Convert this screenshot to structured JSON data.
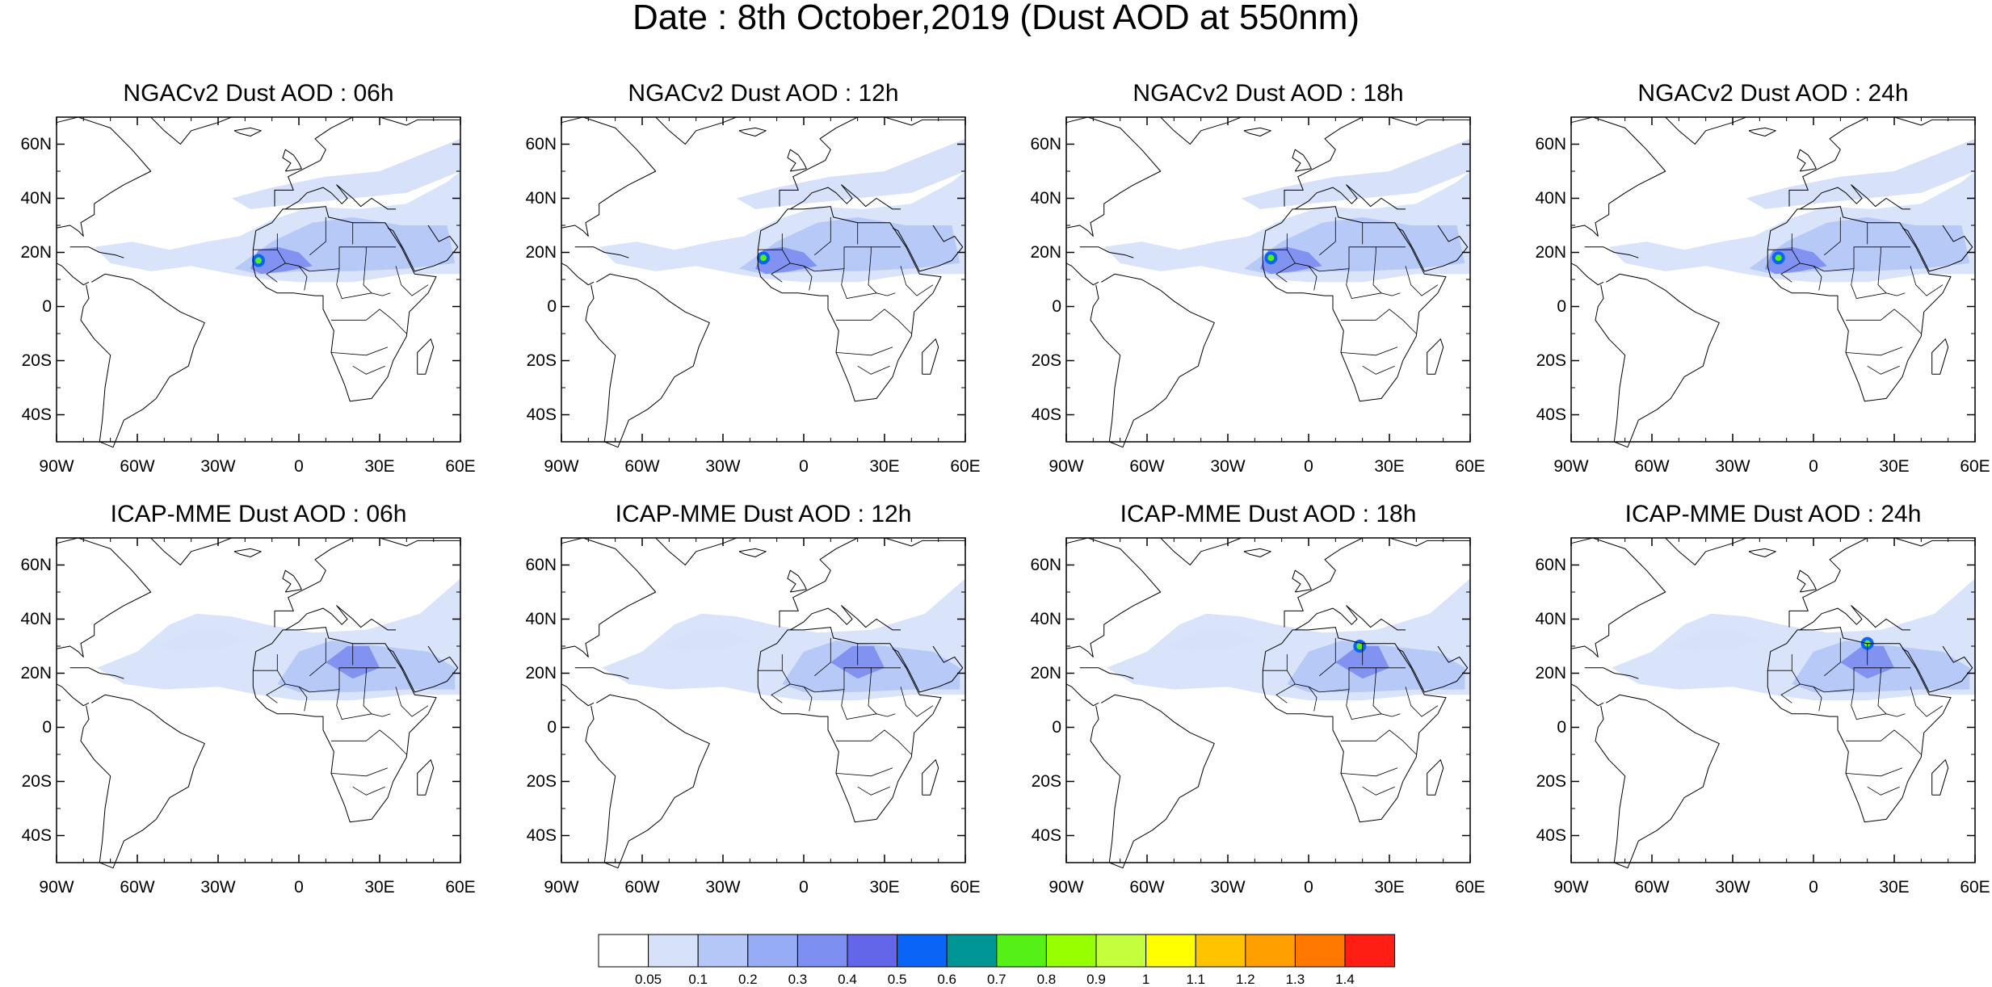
{
  "title": "Date : 8th October,2019 (Dust AOD at 550nm)",
  "panels": [
    {
      "title": "NGACv2 Dust AOD : 06h",
      "peak_lon": -15,
      "peak_lat": 17
    },
    {
      "title": "NGACv2 Dust AOD : 12h",
      "peak_lon": -15,
      "peak_lat": 18
    },
    {
      "title": "NGACv2 Dust AOD : 18h",
      "peak_lon": -14,
      "peak_lat": 18
    },
    {
      "title": "NGACv2 Dust AOD : 24h",
      "peak_lon": -13,
      "peak_lat": 18
    },
    {
      "title": "ICAP-MME Dust AOD : 06h",
      "peak_lon": null,
      "peak_lat": null
    },
    {
      "title": "ICAP-MME Dust AOD : 12h",
      "peak_lon": null,
      "peak_lat": null
    },
    {
      "title": "ICAP-MME Dust AOD : 18h",
      "peak_lon": 19,
      "peak_lat": 30
    },
    {
      "title": "ICAP-MME Dust AOD : 24h",
      "peak_lon": 20,
      "peak_lat": 31
    }
  ],
  "lat_ticks": [
    "60N",
    "40N",
    "20N",
    "0",
    "20S",
    "40S"
  ],
  "lon_ticks": [
    "90W",
    "60W",
    "30W",
    "0",
    "30E",
    "60E"
  ],
  "map_extent": {
    "lon_min": -90,
    "lon_max": 60,
    "lat_min": -50,
    "lat_max": 70
  },
  "colorbar": {
    "labels": [
      "0.05",
      "0.1",
      "0.2",
      "0.3",
      "0.4",
      "0.5",
      "0.6",
      "0.7",
      "0.8",
      "0.9",
      "1",
      "1.1",
      "1.2",
      "1.3",
      "1.4"
    ],
    "colors": [
      "#ffffff",
      "#d7e1fa",
      "#b5c7f7",
      "#96adf5",
      "#7d8ff0",
      "#6366e8",
      "#0a64f5",
      "#009696",
      "#55f015",
      "#96ff00",
      "#c3ff3c",
      "#ffff00",
      "#ffc300",
      "#ff9f00",
      "#ff7800",
      "#ff1e14"
    ]
  }
}
